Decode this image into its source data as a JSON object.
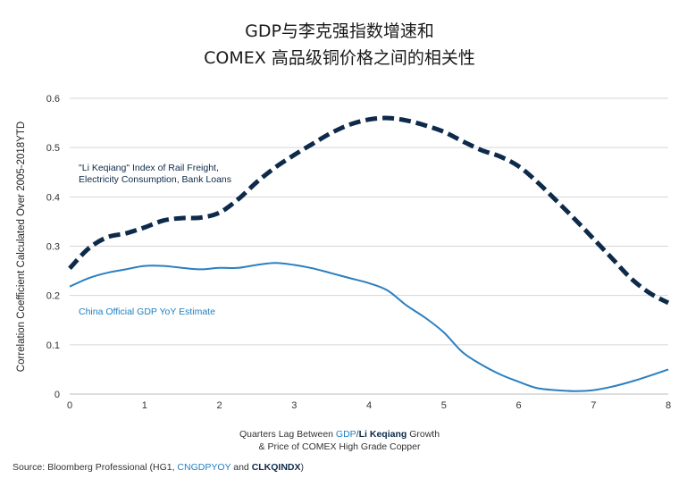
{
  "title": {
    "line1": "GDP与李克强指数增速和",
    "line2": "COMEX 高品级铜价格之间的相关性"
  },
  "colors": {
    "li_keqiang": "#0e2a4a",
    "gdp": "#2b7fc0",
    "grid": "#d6d6d6",
    "accent_text": "#1f7fc3"
  },
  "chart_data": {
    "type": "line",
    "ylabel": "Correlation Coefficient Calculated Over 2005-2018YTD",
    "xlabel_parts": {
      "prefix": "Quarters Lag Between ",
      "gdp": "GDP",
      "slash": "/",
      "li": "Li Keqiang",
      "suffix": " Growth",
      "line2": "& Price of COMEX High Grade Copper"
    },
    "xlim": [
      0,
      8
    ],
    "ylim": [
      0,
      0.6
    ],
    "xticks": [
      "0",
      "1",
      "2",
      "3",
      "4",
      "5",
      "6",
      "7",
      "8"
    ],
    "yticks": [
      "0",
      "0.1",
      "0.2",
      "0.3",
      "0.4",
      "0.5",
      "0.6"
    ],
    "grid": "horizontal",
    "series": [
      {
        "name": "\"Li Keqiang\" Index of Rail Freight, Electricity Consumption, Bank Loans",
        "label_line1": "\"Li Keqiang\" Index of Rail Freight,",
        "label_line2": "Electricity Consumption, Bank Loans",
        "style": "dashed",
        "x": [
          0,
          0.25,
          0.5,
          0.75,
          1.0,
          1.25,
          1.5,
          1.75,
          2.0,
          2.25,
          2.5,
          2.75,
          3.0,
          3.25,
          3.5,
          3.75,
          4.0,
          4.25,
          4.5,
          4.75,
          5.0,
          5.25,
          5.5,
          5.75,
          6.0,
          6.25,
          6.5,
          6.75,
          7.0,
          7.25,
          7.5,
          7.75,
          8.0
        ],
        "values": [
          0.255,
          0.295,
          0.318,
          0.326,
          0.338,
          0.352,
          0.357,
          0.358,
          0.368,
          0.395,
          0.43,
          0.46,
          0.485,
          0.508,
          0.53,
          0.547,
          0.557,
          0.56,
          0.555,
          0.545,
          0.532,
          0.513,
          0.495,
          0.482,
          0.462,
          0.43,
          0.393,
          0.355,
          0.315,
          0.275,
          0.235,
          0.205,
          0.185
        ]
      },
      {
        "name": "China Official GDP YoY Estimate",
        "label_line1": "China Official GDP YoY Estimate",
        "style": "solid",
        "x": [
          0,
          0.25,
          0.5,
          0.75,
          1.0,
          1.25,
          1.5,
          1.75,
          2.0,
          2.25,
          2.5,
          2.75,
          3.0,
          3.25,
          3.5,
          3.75,
          4.0,
          4.25,
          4.5,
          4.75,
          5.0,
          5.25,
          5.5,
          5.75,
          6.0,
          6.25,
          6.5,
          6.75,
          7.0,
          7.25,
          7.5,
          7.75,
          8.0
        ],
        "values": [
          0.218,
          0.235,
          0.246,
          0.253,
          0.26,
          0.26,
          0.256,
          0.253,
          0.256,
          0.256,
          0.262,
          0.266,
          0.262,
          0.255,
          0.245,
          0.235,
          0.225,
          0.21,
          0.18,
          0.155,
          0.125,
          0.085,
          0.06,
          0.04,
          0.025,
          0.012,
          0.008,
          0.006,
          0.008,
          0.015,
          0.025,
          0.037,
          0.05
        ]
      }
    ]
  },
  "source": {
    "prefix": "Source: Bloomberg Professional (HG1, ",
    "code1": "CNGDPYOY",
    "middle": " and ",
    "code2": "CLKQINDX",
    "suffix": ")"
  }
}
